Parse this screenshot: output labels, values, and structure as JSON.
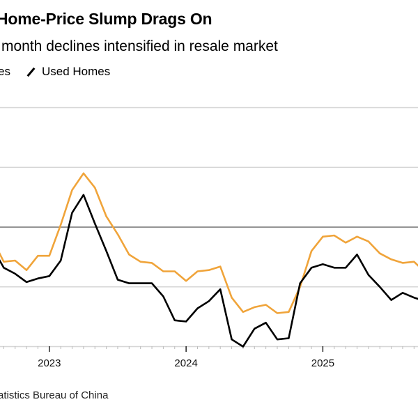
{
  "chart_data": {
    "type": "line",
    "title": "Home-Price Slump Drags On",
    "subtitle": "month declines intensified in resale market",
    "legend": {
      "placement": "top-left",
      "entries": [
        "es",
        "Used Homes"
      ]
    },
    "source": "atistics Bureau of China",
    "x": [
      "2022-08",
      "2022-09",
      "2022-10",
      "2022-11",
      "2022-12",
      "2023-01",
      "2023-02",
      "2023-03",
      "2023-04",
      "2023-05",
      "2023-06",
      "2023-07",
      "2023-08",
      "2023-09",
      "2023-10",
      "2023-11",
      "2023-12",
      "2024-01",
      "2024-02",
      "2024-03",
      "2024-04",
      "2024-05",
      "2024-06",
      "2024-07",
      "2024-08",
      "2024-09",
      "2024-10",
      "2024-11",
      "2024-12",
      "2025-01",
      "2025-02",
      "2025-03",
      "2025-04",
      "2025-05",
      "2025-06",
      "2025-07",
      "2025-08",
      "2025-09",
      "2025-10"
    ],
    "x_tick_labels": [
      "2023",
      "2024",
      "2025"
    ],
    "ylim": [
      -1.0,
      1.0
    ],
    "y_gridlines": [
      1.0,
      0.5,
      0,
      -0.5,
      -1.0
    ],
    "grid": true,
    "series": [
      {
        "name": "New Homes",
        "color": "#f0a43a",
        "values": [
          -0.1,
          -0.29,
          -0.28,
          -0.36,
          -0.24,
          -0.24,
          0.02,
          0.31,
          0.45,
          0.33,
          0.09,
          -0.06,
          -0.23,
          -0.29,
          -0.3,
          -0.37,
          -0.37,
          -0.45,
          -0.37,
          -0.36,
          -0.33,
          -0.59,
          -0.71,
          -0.67,
          -0.65,
          -0.72,
          -0.71,
          -0.5,
          -0.2,
          -0.08,
          -0.07,
          -0.13,
          -0.08,
          -0.12,
          -0.22,
          -0.27,
          -0.3,
          -0.29,
          -0.38
        ]
      },
      {
        "name": "Used Homes",
        "color": "#000000",
        "values": [
          -0.17,
          -0.34,
          -0.39,
          -0.46,
          -0.43,
          -0.41,
          -0.28,
          0.12,
          0.27,
          0.03,
          -0.2,
          -0.44,
          -0.47,
          -0.47,
          -0.47,
          -0.58,
          -0.78,
          -0.79,
          -0.68,
          -0.62,
          -0.52,
          -0.94,
          -1.0,
          -0.85,
          -0.8,
          -0.94,
          -0.93,
          -0.47,
          -0.34,
          -0.31,
          -0.34,
          -0.34,
          -0.23,
          -0.4,
          -0.5,
          -0.61,
          -0.55,
          -0.59,
          -0.62
        ]
      }
    ]
  }
}
